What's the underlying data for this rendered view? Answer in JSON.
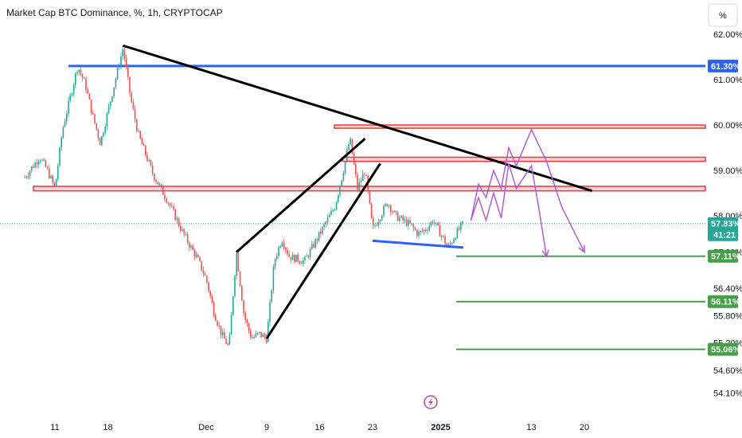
{
  "title": "Market Cap BTC Dominance, %, 1h, CRYPTOCAP",
  "scale_button": "%",
  "colors": {
    "up": "#26a69a",
    "down": "#ef5350",
    "trend": "#000000",
    "resistance": "#e53935",
    "zone_fill": "#fbd5db",
    "blue_line": "#2962ff",
    "target": "#43a047",
    "projection": "#b15bd3",
    "price_line": "#26a69a"
  },
  "chart_data": {
    "type": "candlestick",
    "title": "Market Cap BTC Dominance, %, 1h, CRYPTOCAP",
    "x_ticks": [
      "11",
      "18",
      "Dec",
      "9",
      "16",
      "23",
      "2025",
      "13",
      "20"
    ],
    "y_ticks": [
      "62.00%",
      "61.00%",
      "60.00%",
      "59.00%",
      "58.00%",
      "56.40%",
      "55.80%",
      "55.20%",
      "54.60%",
      "54.10%"
    ],
    "y_ticks_partial": [
      "57.20%"
    ],
    "last_price": "57.83%",
    "countdown": "41:21",
    "levels": [
      {
        "label": "61.30%",
        "value": 61.3,
        "color": "blue"
      },
      {
        "label": "57.11%",
        "value": 57.11,
        "color": "green"
      },
      {
        "label": "56.11%",
        "value": 56.11,
        "color": "green"
      },
      {
        "label": "55.06%",
        "value": 55.06,
        "color": "green"
      }
    ],
    "resistance_zones": [
      [
        59.96,
        60.0
      ],
      [
        59.2,
        59.29
      ],
      [
        58.55,
        58.65
      ]
    ],
    "price_path": [
      [
        "2024-11-07",
        58.85
      ],
      [
        "2024-11-09",
        59.3
      ],
      [
        "2024-11-10",
        59.0
      ],
      [
        "2024-11-11",
        58.6
      ],
      [
        "2024-11-12",
        59.9
      ],
      [
        "2024-11-13",
        60.6
      ],
      [
        "2024-11-14",
        61.3
      ],
      [
        "2024-11-15",
        60.9
      ],
      [
        "2024-11-16",
        60.2
      ],
      [
        "2024-11-17",
        59.6
      ],
      [
        "2024-11-18",
        60.3
      ],
      [
        "2024-11-19",
        61.0
      ],
      [
        "2024-11-20",
        61.7
      ],
      [
        "2024-11-21",
        60.6
      ],
      [
        "2024-11-22",
        59.8
      ],
      [
        "2024-11-24",
        58.9
      ],
      [
        "2024-11-26",
        58.3
      ],
      [
        "2024-11-28",
        57.6
      ],
      [
        "2024-11-30",
        57.0
      ],
      [
        "2024-12-01",
        56.6
      ],
      [
        "2024-12-02",
        55.9
      ],
      [
        "2024-12-03",
        55.4
      ],
      [
        "2024-12-04",
        55.1
      ],
      [
        "2024-12-05",
        57.2
      ],
      [
        "2024-12-06",
        55.8
      ],
      [
        "2024-12-07",
        55.3
      ],
      [
        "2024-12-08",
        55.4
      ],
      [
        "2024-12-09",
        55.3
      ],
      [
        "2024-12-10",
        57.0
      ],
      [
        "2024-12-11",
        57.5
      ],
      [
        "2024-12-12",
        57.1
      ],
      [
        "2024-12-14",
        57.0
      ],
      [
        "2024-12-16",
        57.6
      ],
      [
        "2024-12-18",
        58.2
      ],
      [
        "2024-12-19",
        58.9
      ],
      [
        "2024-12-20",
        59.7
      ],
      [
        "2024-12-21",
        58.6
      ],
      [
        "2024-12-22",
        59.0
      ],
      [
        "2024-12-23",
        57.7
      ],
      [
        "2024-12-24",
        58.0
      ],
      [
        "2024-12-25",
        58.3
      ],
      [
        "2024-12-26",
        58.0
      ],
      [
        "2024-12-27",
        57.9
      ],
      [
        "2024-12-28",
        57.8
      ],
      [
        "2024-12-29",
        57.6
      ],
      [
        "2024-12-30",
        57.7
      ],
      [
        "2024-12-31",
        57.9
      ],
      [
        "2025-01-02",
        57.3
      ],
      [
        "2025-01-03",
        57.6
      ],
      [
        "2025-01-04",
        57.83
      ]
    ],
    "trendlines": [
      {
        "from": [
          "2024-11-20",
          61.75
        ],
        "to": [
          "2025-01-21",
          58.55
        ]
      },
      {
        "from": [
          "2024-12-05",
          57.2
        ],
        "to": [
          "2024-12-22",
          59.7
        ]
      },
      {
        "from": [
          "2024-12-09",
          55.3
        ],
        "to": [
          "2024-12-24",
          59.15
        ]
      }
    ],
    "support_line": {
      "from": [
        "2024-12-23",
        57.45
      ],
      "to": [
        "2025-01-04",
        57.3
      ]
    },
    "projections": [
      [
        [
          "2025-01-05",
          57.9
        ],
        [
          "2025-01-06",
          58.7
        ],
        [
          "2025-01-07",
          58.4
        ],
        [
          "2025-01-08",
          59.0
        ],
        [
          "2025-01-09",
          58.6
        ],
        [
          "2025-01-10",
          59.5
        ],
        [
          "2025-01-11",
          59.1
        ],
        [
          "2025-01-13",
          59.9
        ],
        [
          "2025-01-15",
          59.2
        ],
        [
          "2025-01-17",
          58.2
        ],
        [
          "2025-01-20",
          57.2
        ]
      ],
      [
        [
          "2025-01-05",
          57.9
        ],
        [
          "2025-01-06",
          58.4
        ],
        [
          "2025-01-07",
          57.9
        ],
        [
          "2025-01-08",
          58.5
        ],
        [
          "2025-01-09",
          57.95
        ],
        [
          "2025-01-10",
          59.15
        ],
        [
          "2025-01-11",
          58.6
        ],
        [
          "2025-01-13",
          59.1
        ],
        [
          "2025-01-14",
          58.15
        ],
        [
          "2025-01-15",
          57.1
        ]
      ]
    ]
  }
}
